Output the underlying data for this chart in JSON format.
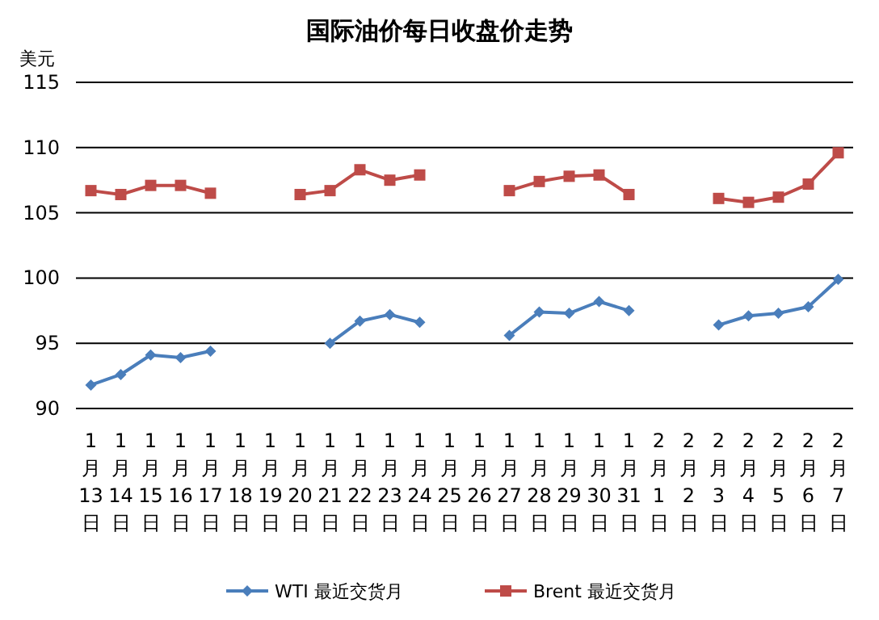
{
  "chart_data": {
    "type": "line",
    "title": "国际油价每日收盘价走势",
    "ylabel": "美元",
    "categories": [
      "1月13日",
      "1月14日",
      "1月15日",
      "1月16日",
      "1月17日",
      "1月18日",
      "1月19日",
      "1月20日",
      "1月21日",
      "1月22日",
      "1月23日",
      "1月24日",
      "1月25日",
      "1月26日",
      "1月27日",
      "1月28日",
      "1月29日",
      "1月30日",
      "1月31日",
      "2月1日",
      "2月2日",
      "2月3日",
      "2月4日",
      "2月5日",
      "2月6日",
      "2月7日"
    ],
    "series": [
      {
        "name": "WTI 最近交货月",
        "color": "#4a7ebb",
        "marker": "diamond",
        "values": [
          91.8,
          92.6,
          94.1,
          93.9,
          94.4,
          null,
          null,
          null,
          95.0,
          96.7,
          97.2,
          96.6,
          null,
          null,
          95.6,
          97.4,
          97.3,
          98.2,
          97.5,
          null,
          null,
          96.4,
          97.1,
          97.3,
          97.8,
          99.9
        ]
      },
      {
        "name": "Brent 最近交货月",
        "color": "#be4b48",
        "marker": "square",
        "values": [
          106.7,
          106.4,
          107.1,
          107.1,
          106.5,
          null,
          null,
          106.4,
          106.7,
          108.3,
          107.5,
          107.9,
          null,
          null,
          106.7,
          107.4,
          107.8,
          107.9,
          106.4,
          null,
          null,
          106.1,
          105.8,
          106.2,
          107.2,
          109.6
        ]
      }
    ],
    "ylim": [
      90,
      115
    ],
    "yticks": [
      90,
      95,
      100,
      105,
      110,
      115
    ],
    "grid": "y",
    "legend": "bottom"
  }
}
